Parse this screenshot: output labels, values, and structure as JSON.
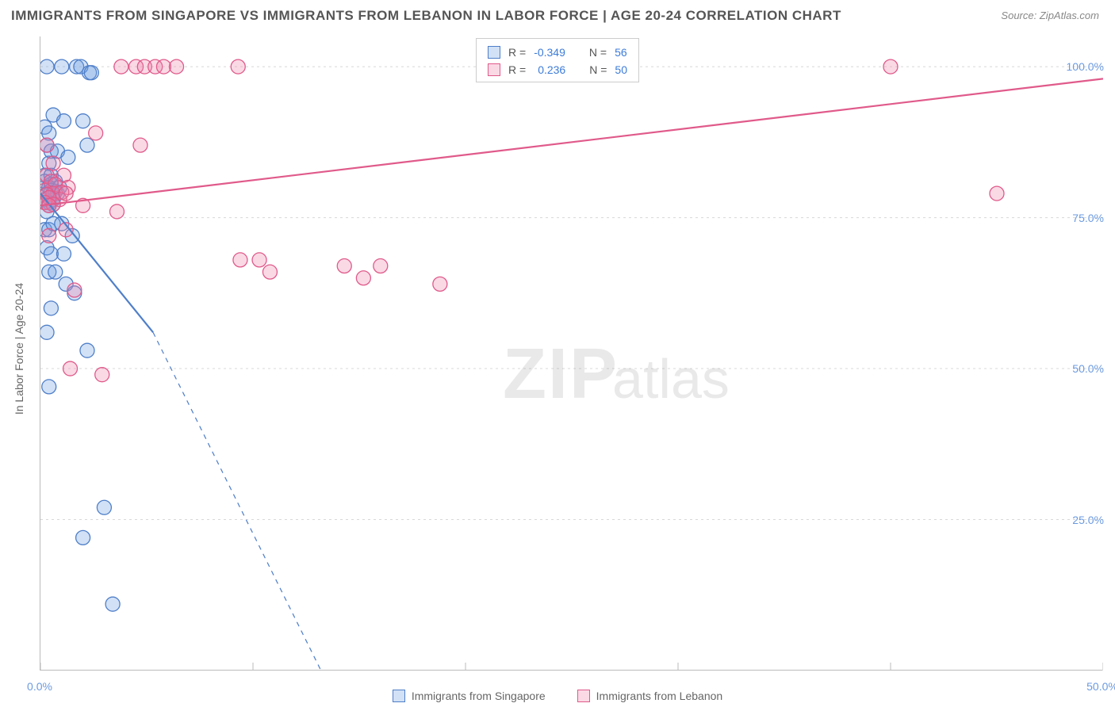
{
  "title": "IMMIGRANTS FROM SINGAPORE VS IMMIGRANTS FROM LEBANON IN LABOR FORCE | AGE 20-24 CORRELATION CHART",
  "source_label": "Source:",
  "source_name": "ZipAtlas.com",
  "y_axis_label": "In Labor Force | Age 20-24",
  "watermark": "ZIPatlas",
  "chart": {
    "type": "scatter",
    "xlim": [
      0,
      50
    ],
    "ylim": [
      0,
      105
    ],
    "x_ticks": [
      0,
      10,
      20,
      30,
      40,
      50
    ],
    "x_tick_labels": [
      "0.0%",
      "",
      "",
      "",
      "",
      "50.0%"
    ],
    "y_ticks": [
      25,
      50,
      75,
      100
    ],
    "y_tick_labels": [
      "25.0%",
      "50.0%",
      "75.0%",
      "100.0%"
    ],
    "grid_color": "#d8d8d8",
    "axis_color": "#bbbbbb",
    "background_color": "#ffffff",
    "marker_radius": 9,
    "marker_stroke_width": 1.3,
    "line_width": 2.2
  },
  "series": [
    {
      "id": "singapore",
      "label": "Immigrants from Singapore",
      "fill": "rgba(107,154,224,0.30)",
      "stroke": "#4f7fc9",
      "R": "-0.349",
      "N": "56",
      "trend": {
        "x1": 0,
        "y1": 79,
        "x2_solid": 5.3,
        "y2_solid": 56,
        "x2_dash": 13.2,
        "y2_dash": 0
      },
      "points": [
        [
          0.3,
          100
        ],
        [
          1.0,
          100
        ],
        [
          1.7,
          100
        ],
        [
          1.9,
          100
        ],
        [
          2.3,
          99
        ],
        [
          2.4,
          99
        ],
        [
          0.2,
          90
        ],
        [
          0.4,
          89
        ],
        [
          0.6,
          92
        ],
        [
          1.1,
          91
        ],
        [
          2.0,
          91
        ],
        [
          0.3,
          87
        ],
        [
          0.5,
          86
        ],
        [
          0.8,
          86
        ],
        [
          0.4,
          84
        ],
        [
          1.3,
          85
        ],
        [
          2.2,
          87
        ],
        [
          0.2,
          82
        ],
        [
          0.5,
          82
        ],
        [
          0.2,
          81
        ],
        [
          0.7,
          81
        ],
        [
          0.5,
          80.5
        ],
        [
          0.3,
          79
        ],
        [
          0.4,
          80
        ],
        [
          0.5,
          79.5
        ],
        [
          0.6,
          79
        ],
        [
          0.6,
          78
        ],
        [
          0.7,
          79.3
        ],
        [
          0.8,
          79
        ],
        [
          0.9,
          80
        ],
        [
          0.2,
          78
        ],
        [
          0.4,
          77.5
        ],
        [
          0.4,
          77
        ],
        [
          0.3,
          76
        ],
        [
          0.6,
          77.2
        ],
        [
          0.2,
          73
        ],
        [
          0.4,
          73
        ],
        [
          0.6,
          74
        ],
        [
          1.0,
          74
        ],
        [
          1.5,
          72
        ],
        [
          0.3,
          70
        ],
        [
          0.5,
          69
        ],
        [
          1.1,
          69
        ],
        [
          0.4,
          66
        ],
        [
          0.7,
          66
        ],
        [
          1.2,
          64
        ],
        [
          1.6,
          62.5
        ],
        [
          0.5,
          60
        ],
        [
          0.3,
          56
        ],
        [
          2.2,
          53
        ],
        [
          0.4,
          47
        ],
        [
          3.0,
          27
        ],
        [
          2.0,
          22
        ],
        [
          3.4,
          11
        ]
      ]
    },
    {
      "id": "lebanon",
      "label": "Immigrants from Lebanon",
      "fill": "rgba(238,130,170,0.30)",
      "stroke": "#e05a8a",
      "R": "0.236",
      "N": "50",
      "trend": {
        "x1": 0,
        "y1": 77,
        "x2_solid": 50,
        "y2_solid": 98
      },
      "points": [
        [
          3.8,
          100
        ],
        [
          4.5,
          100
        ],
        [
          4.9,
          100
        ],
        [
          5.4,
          100
        ],
        [
          5.8,
          100
        ],
        [
          6.4,
          100
        ],
        [
          9.3,
          100
        ],
        [
          40.0,
          100
        ],
        [
          2.6,
          89
        ],
        [
          0.3,
          87
        ],
        [
          4.7,
          87
        ],
        [
          0.6,
          84
        ],
        [
          0.3,
          82
        ],
        [
          1.1,
          82
        ],
        [
          0.5,
          81
        ],
        [
          0.7,
          80.5
        ],
        [
          1.3,
          80
        ],
        [
          0.2,
          79.5
        ],
        [
          0.6,
          79
        ],
        [
          0.3,
          78.8
        ],
        [
          1.0,
          79.2
        ],
        [
          0.9,
          78
        ],
        [
          0.4,
          78.3
        ],
        [
          0.2,
          77.5
        ],
        [
          0.6,
          77.2
        ],
        [
          0.4,
          77
        ],
        [
          1.2,
          79
        ],
        [
          2.0,
          77
        ],
        [
          3.6,
          76
        ],
        [
          45.0,
          79
        ],
        [
          1.2,
          73
        ],
        [
          0.4,
          72
        ],
        [
          9.4,
          68
        ],
        [
          10.3,
          68
        ],
        [
          10.8,
          66
        ],
        [
          14.3,
          67
        ],
        [
          15.2,
          65
        ],
        [
          16.0,
          67
        ],
        [
          18.8,
          64
        ],
        [
          1.6,
          63
        ],
        [
          1.4,
          50
        ],
        [
          2.9,
          49
        ]
      ]
    }
  ],
  "stats_legend": {
    "R_label": "R =",
    "N_label": "N ="
  },
  "bottom_legend_label_a": "Immigrants from Singapore",
  "bottom_legend_label_b": "Immigrants from Lebanon"
}
